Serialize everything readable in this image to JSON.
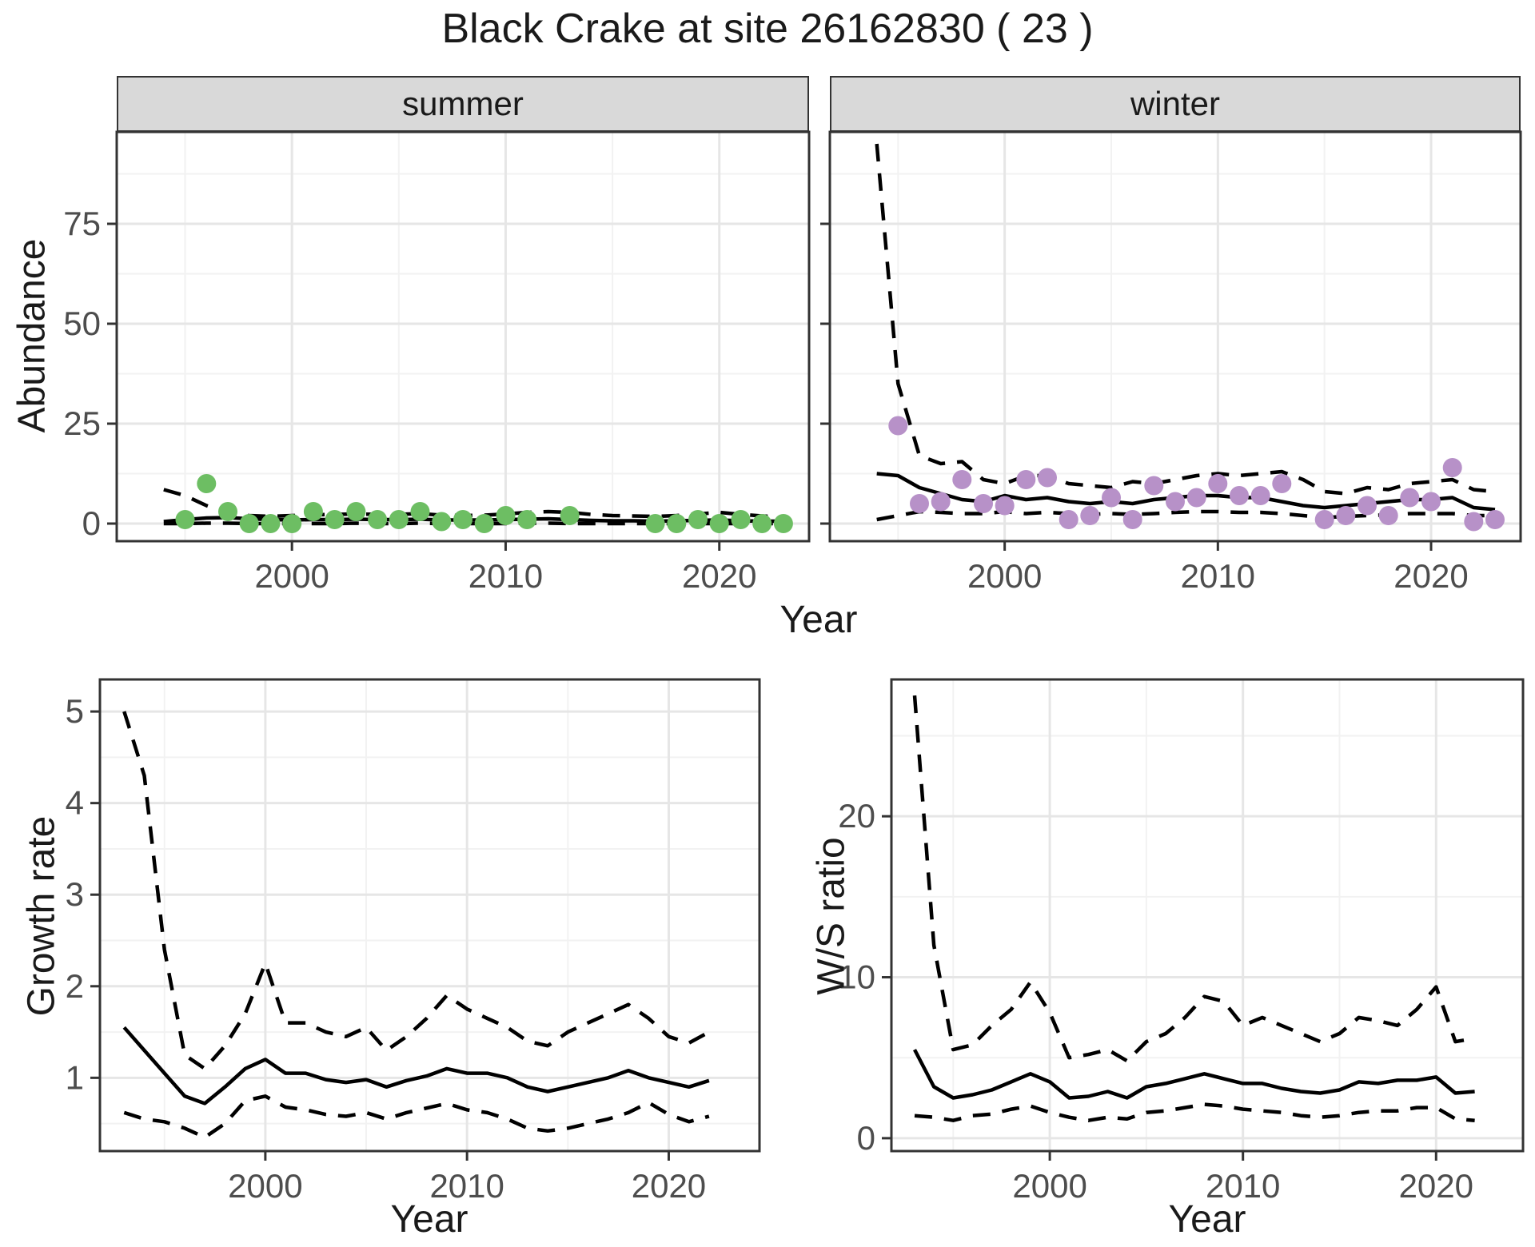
{
  "title": "Black Crake at site 26162830 ( 23 )",
  "labels": {
    "abundance": "Abundance",
    "year": "Year",
    "growth_rate": "Growth rate",
    "ws_ratio": "W/S ratio"
  },
  "colors": {
    "summer_point": "#6dbe63",
    "winter_point": "#b791c8",
    "strip_bg": "#d9d9d9",
    "grid_major": "#e6e6e6",
    "grid_minor": "#f2f2f2",
    "panel_border": "#333333",
    "tick_mark": "#333333",
    "tick_text": "#4d4d4d",
    "line": "#000000"
  },
  "chart_data": [
    {
      "id": "abundance_summer",
      "type": "line",
      "facet_label": "summer",
      "xlabel": "Year",
      "ylabel": "Abundance",
      "xlim": [
        1991.8,
        2024.2
      ],
      "ylim": [
        -4.4,
        98
      ],
      "xticks": [
        2000,
        2010,
        2020
      ],
      "xminor": [
        1995,
        2005,
        2015
      ],
      "yticks": [
        0,
        25,
        50,
        75
      ],
      "yminor": [
        12.5,
        37.5,
        62.5,
        87.5
      ],
      "show_yticklabels": true,
      "years": [
        1994,
        1995,
        1996,
        1997,
        1998,
        1999,
        2000,
        2001,
        2002,
        2003,
        2004,
        2005,
        2006,
        2007,
        2008,
        2009,
        2010,
        2011,
        2012,
        2013,
        2014,
        2015,
        2016,
        2017,
        2018,
        2019,
        2020,
        2021,
        2022,
        2023
      ],
      "series": [
        {
          "name": "upper_95ci",
          "style": "dashed",
          "values": [
            8.5,
            7,
            4.5,
            2.5,
            2,
            1.8,
            2,
            2.2,
            2.3,
            2.4,
            2.3,
            2.3,
            2.5,
            2.1,
            2,
            2.1,
            2.4,
            2.8,
            3,
            2.8,
            2.3,
            2,
            1.9,
            1.8,
            2,
            2.4,
            2.8,
            2.3,
            1.9,
            1.6
          ]
        },
        {
          "name": "median",
          "style": "solid",
          "values": [
            0.5,
            1,
            1.4,
            1.5,
            1.2,
            1,
            0.9,
            1,
            1,
            1.1,
            1,
            1,
            1.1,
            0.9,
            0.9,
            0.9,
            1,
            1.1,
            1.2,
            1,
            0.8,
            0.7,
            0.7,
            0.6,
            0.7,
            0.8,
            0.9,
            0.7,
            0.6,
            0.6
          ]
        },
        {
          "name": "lower_95ci",
          "style": "dashed",
          "values": [
            0,
            0,
            0.1,
            0.1,
            0,
            0,
            0,
            0,
            0,
            0.1,
            0,
            0,
            0.1,
            0,
            0,
            0,
            0,
            0.1,
            0.1,
            0,
            0,
            0,
            0,
            0,
            0,
            0,
            0,
            0,
            0,
            0
          ]
        }
      ],
      "points": {
        "name": "observed_counts",
        "color": "#6dbe63",
        "years": [
          1995,
          1996,
          1997,
          1998,
          1999,
          2000,
          2001,
          2002,
          2003,
          2004,
          2005,
          2006,
          2007,
          2008,
          2009,
          2010,
          2011,
          2013,
          2017,
          2018,
          2019,
          2020,
          2021,
          2022,
          2023
        ],
        "values": [
          1,
          10,
          3,
          0,
          0,
          0,
          3,
          1,
          3,
          1,
          1,
          3,
          0.5,
          1,
          0,
          2,
          1,
          2,
          0,
          0,
          1,
          0,
          1,
          0,
          0
        ]
      }
    },
    {
      "id": "abundance_winter",
      "type": "line",
      "facet_label": "winter",
      "xlabel": "Year",
      "ylabel": "Abundance",
      "xlim": [
        1991.8,
        2024.2
      ],
      "ylim": [
        -4.4,
        98
      ],
      "xticks": [
        2000,
        2010,
        2020
      ],
      "xminor": [
        1995,
        2005,
        2015
      ],
      "yticks": [
        0,
        25,
        50,
        75
      ],
      "yminor": [
        12.5,
        37.5,
        62.5,
        87.5
      ],
      "show_yticklabels": false,
      "years": [
        1994,
        1995,
        1996,
        1997,
        1998,
        1999,
        2000,
        2001,
        2002,
        2003,
        2004,
        2005,
        2006,
        2007,
        2008,
        2009,
        2010,
        2011,
        2012,
        2013,
        2014,
        2015,
        2016,
        2017,
        2018,
        2019,
        2020,
        2021,
        2022,
        2023
      ],
      "series": [
        {
          "name": "upper_95ci",
          "style": "dashed",
          "values": [
            95,
            35,
            17,
            15,
            15.5,
            11,
            10,
            12,
            12,
            10,
            9.5,
            9,
            10.5,
            10,
            11,
            12,
            12.5,
            12,
            12.5,
            13,
            11,
            8,
            7.5,
            9,
            8.5,
            10,
            10.5,
            11,
            8.5,
            8
          ]
        },
        {
          "name": "median",
          "style": "solid",
          "values": [
            12.5,
            12,
            9,
            7.5,
            6,
            5.5,
            7,
            6,
            6.5,
            5.5,
            5,
            5.5,
            5,
            6,
            6.5,
            7,
            7,
            6.5,
            6.5,
            5.5,
            4.5,
            4,
            4.5,
            5,
            5.5,
            6,
            6,
            6.5,
            4,
            3.5
          ]
        },
        {
          "name": "lower_95ci",
          "style": "dashed",
          "values": [
            1,
            2,
            3,
            2.8,
            2.5,
            2.5,
            3,
            2.5,
            2.8,
            2.5,
            2.3,
            2.5,
            2.3,
            2.5,
            2.8,
            3,
            3,
            2.8,
            2.8,
            2.5,
            2,
            1.5,
            1.8,
            2,
            2.2,
            2.5,
            2.5,
            2.5,
            2,
            2
          ]
        }
      ],
      "points": {
        "name": "observed_counts",
        "color": "#b791c8",
        "years": [
          1995,
          1996,
          1997,
          1998,
          1999,
          2000,
          2001,
          2002,
          2003,
          2004,
          2005,
          2006,
          2007,
          2008,
          2009,
          2010,
          2011,
          2012,
          2013,
          2015,
          2016,
          2017,
          2018,
          2019,
          2020,
          2021,
          2022,
          2023
        ],
        "values": [
          24.5,
          5,
          5.5,
          11,
          5,
          4.5,
          11,
          11.5,
          1,
          2,
          6.5,
          1,
          9.5,
          5.5,
          6.5,
          10,
          7,
          7,
          10,
          1,
          2,
          4.5,
          2,
          6.5,
          5.5,
          14,
          0.5,
          1
        ]
      }
    },
    {
      "id": "growth_rate",
      "type": "line",
      "facet_label": "",
      "xlabel": "Year",
      "ylabel": "Growth rate",
      "xlim": [
        1991.8,
        2024.5
      ],
      "ylim": [
        0.2,
        5.35
      ],
      "xticks": [
        2000,
        2010,
        2020
      ],
      "xminor": [
        1995,
        2005,
        2015
      ],
      "yticks": [
        1,
        2,
        3,
        4,
        5
      ],
      "yminor": [
        0.5,
        1.5,
        2.5,
        3.5,
        4.5
      ],
      "show_yticklabels": true,
      "years": [
        1993,
        1994,
        1995,
        1996,
        1997,
        1998,
        1999,
        2000,
        2001,
        2002,
        2003,
        2004,
        2005,
        2006,
        2007,
        2008,
        2009,
        2010,
        2011,
        2012,
        2013,
        2014,
        2015,
        2016,
        2017,
        2018,
        2019,
        2020,
        2021,
        2022
      ],
      "series": [
        {
          "name": "upper_95ci",
          "style": "dashed",
          "values": [
            5,
            4.3,
            2.4,
            1.25,
            1.1,
            1.35,
            1.7,
            2.25,
            1.6,
            1.6,
            1.5,
            1.45,
            1.55,
            1.3,
            1.45,
            1.65,
            1.9,
            1.75,
            1.65,
            1.55,
            1.4,
            1.35,
            1.5,
            1.6,
            1.7,
            1.8,
            1.65,
            1.45,
            1.38,
            1.5
          ]
        },
        {
          "name": "median",
          "style": "solid",
          "values": [
            1.55,
            1.3,
            1.05,
            0.8,
            0.72,
            0.9,
            1.1,
            1.2,
            1.05,
            1.05,
            0.98,
            0.95,
            0.98,
            0.9,
            0.97,
            1.02,
            1.1,
            1.05,
            1.05,
            1,
            0.9,
            0.85,
            0.9,
            0.95,
            1,
            1.08,
            1,
            0.95,
            0.9,
            0.97
          ]
        },
        {
          "name": "lower_95ci",
          "style": "dashed",
          "values": [
            0.62,
            0.55,
            0.52,
            0.45,
            0.35,
            0.5,
            0.75,
            0.8,
            0.68,
            0.65,
            0.6,
            0.58,
            0.62,
            0.55,
            0.62,
            0.67,
            0.72,
            0.65,
            0.62,
            0.55,
            0.45,
            0.42,
            0.45,
            0.5,
            0.55,
            0.62,
            0.73,
            0.6,
            0.52,
            0.58
          ]
        }
      ],
      "points": null
    },
    {
      "id": "ws_ratio",
      "type": "line",
      "facet_label": "",
      "xlabel": "Year",
      "ylabel": "W/S ratio",
      "xlim": [
        1991.8,
        2024.5
      ],
      "ylim": [
        -0.8,
        28.5
      ],
      "xticks": [
        2000,
        2010,
        2020
      ],
      "xminor": [
        1995,
        2005,
        2015
      ],
      "yticks": [
        0,
        10,
        20
      ],
      "yminor": [
        5,
        15,
        25
      ],
      "show_yticklabels": true,
      "years": [
        1993,
        1994,
        1995,
        1996,
        1997,
        1998,
        1999,
        2000,
        2001,
        2002,
        2003,
        2004,
        2005,
        2006,
        2007,
        2008,
        2009,
        2010,
        2011,
        2012,
        2013,
        2014,
        2015,
        2016,
        2017,
        2018,
        2019,
        2020,
        2021,
        2022
      ],
      "series": [
        {
          "name": "upper_95ci",
          "style": "dashed",
          "values": [
            27.5,
            12,
            5.5,
            5.8,
            7,
            8,
            9.7,
            7.8,
            5,
            5.2,
            5.5,
            4.8,
            6,
            6.5,
            7.5,
            8.8,
            8.5,
            7,
            7.5,
            7,
            6.5,
            6,
            6.5,
            7.5,
            7.3,
            7,
            8,
            9.4,
            6,
            6.2
          ]
        },
        {
          "name": "median",
          "style": "solid",
          "values": [
            5.5,
            3.2,
            2.5,
            2.7,
            3,
            3.5,
            4,
            3.5,
            2.5,
            2.6,
            2.9,
            2.5,
            3.2,
            3.4,
            3.7,
            4,
            3.7,
            3.4,
            3.4,
            3.1,
            2.9,
            2.8,
            3,
            3.5,
            3.4,
            3.6,
            3.6,
            3.8,
            2.8,
            2.9
          ]
        },
        {
          "name": "lower_95ci",
          "style": "dashed",
          "values": [
            1.4,
            1.3,
            1.1,
            1.4,
            1.5,
            1.8,
            2,
            1.6,
            1.3,
            1.1,
            1.3,
            1.2,
            1.6,
            1.7,
            1.9,
            2.1,
            2,
            1.8,
            1.7,
            1.6,
            1.4,
            1.3,
            1.4,
            1.6,
            1.7,
            1.7,
            1.9,
            1.9,
            1.2,
            1.1
          ]
        }
      ],
      "points": null
    }
  ]
}
